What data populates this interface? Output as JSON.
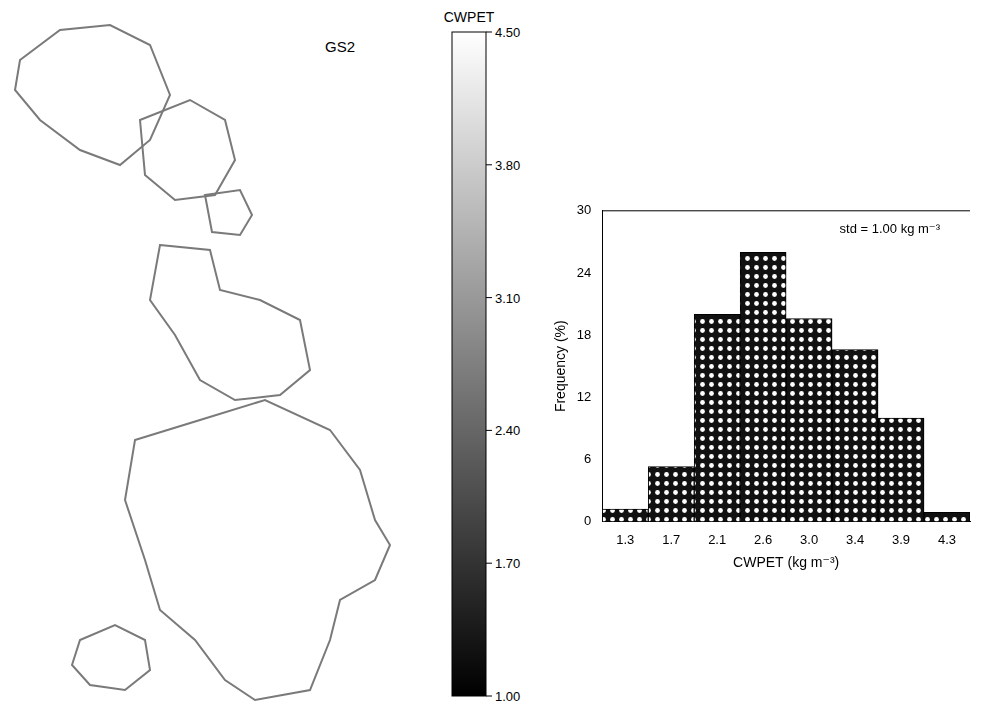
{
  "chart_data": {
    "type": "bar",
    "categories": [
      "1.3",
      "1.7",
      "2.1",
      "2.6",
      "3.0",
      "3.4",
      "3.9",
      "4.3"
    ],
    "values": [
      1.2,
      5.3,
      20,
      26,
      19.6,
      16.6,
      10,
      0.9
    ],
    "color": "#111111",
    "ylim": [
      0,
      30
    ],
    "yticks": [
      0,
      6,
      12,
      18,
      24,
      30
    ],
    "x_label": "CWPET (kg m⁻³)",
    "y_label": "Frequency (%)",
    "annotations": [
      "std = 1.00 kg m⁻³"
    ],
    "grid": false
  },
  "map": {
    "title": "GS2",
    "colorbar": {
      "label": "CWPET",
      "range": [
        1.0,
        4.5
      ],
      "ticks": [
        {
          "value": 1.0,
          "label": "1.00"
        },
        {
          "value": 1.7,
          "label": "1.70"
        },
        {
          "value": 2.4,
          "label": "2.40"
        },
        {
          "value": 3.1,
          "label": "3.10"
        },
        {
          "value": 3.8,
          "label": "3.80"
        },
        {
          "value": 4.5,
          "label": "4.50"
        }
      ]
    }
  }
}
